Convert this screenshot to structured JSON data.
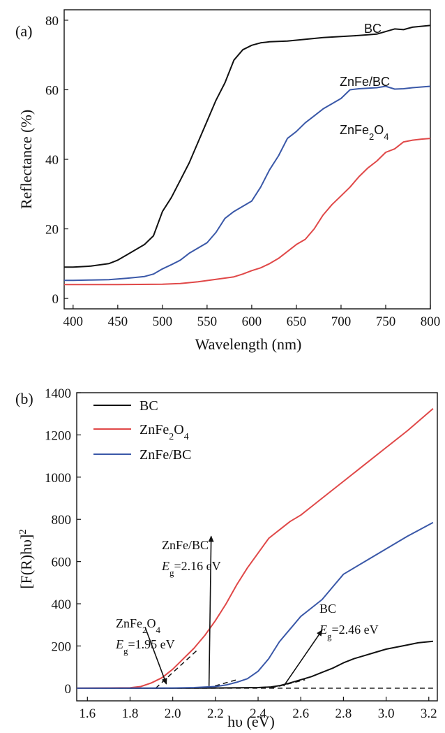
{
  "chart_data": [
    {
      "type": "line",
      "panel_label": "(a)",
      "xlabel": "Wavelength (nm)",
      "ylabel": "Reflectance (%)",
      "xlim": [
        390,
        800
      ],
      "ylim": [
        -3,
        83
      ],
      "xticks": [
        400,
        450,
        500,
        550,
        600,
        650,
        700,
        750,
        800
      ],
      "yticks": [
        0,
        20,
        40,
        60,
        80
      ],
      "grid": false,
      "series": [
        {
          "name": "BC",
          "color": "#111111",
          "x": [
            390,
            400,
            420,
            440,
            450,
            460,
            470,
            480,
            490,
            500,
            510,
            520,
            530,
            540,
            550,
            560,
            570,
            580,
            590,
            600,
            610,
            620,
            640,
            660,
            680,
            700,
            720,
            740,
            760,
            770,
            780,
            800
          ],
          "y": [
            9,
            9,
            9.3,
            10,
            11,
            12.5,
            14,
            15.5,
            18,
            25,
            29,
            34,
            39,
            45,
            51,
            57,
            62,
            68.5,
            71.5,
            72.8,
            73.5,
            73.8,
            74,
            74.5,
            75,
            75.3,
            75.6,
            76,
            77.5,
            77.3,
            78,
            78.5
          ]
        },
        {
          "name": "ZnFe/BC",
          "color": "#3a58a8",
          "x": [
            390,
            400,
            420,
            440,
            460,
            480,
            490,
            500,
            510,
            520,
            530,
            540,
            550,
            560,
            570,
            580,
            590,
            600,
            610,
            620,
            630,
            640,
            650,
            660,
            670,
            680,
            690,
            700,
            710,
            720,
            740,
            750,
            760,
            770,
            780,
            800
          ],
          "y": [
            5.2,
            5.2,
            5.3,
            5.4,
            5.8,
            6.3,
            7,
            8.5,
            9.7,
            11,
            13,
            14.5,
            16,
            19,
            23,
            25,
            26.5,
            28,
            32,
            37,
            41,
            46,
            48,
            50.5,
            52.5,
            54.5,
            56,
            57.5,
            60,
            60.3,
            60.6,
            61,
            60.2,
            60.3,
            60.6,
            61
          ]
        },
        {
          "name": "ZnFe2O4",
          "color": "#e04848",
          "x": [
            390,
            400,
            450,
            500,
            520,
            540,
            560,
            580,
            590,
            600,
            610,
            620,
            630,
            640,
            650,
            660,
            670,
            680,
            690,
            700,
            710,
            720,
            730,
            740,
            750,
            760,
            770,
            780,
            790,
            800
          ],
          "y": [
            4,
            4,
            4,
            4.1,
            4.3,
            4.8,
            5.5,
            6.2,
            7,
            8,
            8.8,
            10,
            11.5,
            13.5,
            15.5,
            17,
            20,
            24,
            27,
            29.5,
            32,
            35,
            37.5,
            39.5,
            42,
            43,
            45,
            45.5,
            45.8,
            46
          ]
        }
      ],
      "labels": {
        "bc": "BC",
        "znfe_bc": "ZnFe/BC",
        "znfe2o4_main": "ZnFe",
        "znfe2o4_sub1": "2",
        "znfe2o4_mid": "O",
        "znfe2o4_sub2": "4"
      }
    },
    {
      "type": "line",
      "panel_label": "(b)",
      "xlabel": "hυ (eV)",
      "ylabel_main": "[F(R)hυ]",
      "ylabel_sup": "2",
      "xlim": [
        1.55,
        3.24
      ],
      "ylim": [
        -60,
        1400
      ],
      "xticks": [
        1.6,
        1.8,
        2.0,
        2.2,
        2.4,
        2.6,
        2.8,
        3.0,
        3.2
      ],
      "yticks": [
        0,
        200,
        400,
        600,
        800,
        1000,
        1200,
        1400
      ],
      "grid": false,
      "legend_position": "top-left",
      "legend": [
        {
          "label": "BC",
          "color": "#111111"
        },
        {
          "label_main": "ZnFe",
          "label_sub1": "2",
          "label_mid": "O",
          "label_sub2": "4",
          "color": "#e04848"
        },
        {
          "label": "ZnFe/BC",
          "color": "#3a58a8"
        }
      ],
      "series": [
        {
          "name": "BC",
          "color": "#111111",
          "x": [
            1.55,
            2.0,
            2.2,
            2.4,
            2.46,
            2.5,
            2.55,
            2.6,
            2.65,
            2.7,
            2.75,
            2.8,
            2.85,
            2.9,
            2.95,
            3.0,
            3.05,
            3.1,
            3.15,
            3.22
          ],
          "y": [
            0,
            0,
            1,
            3,
            6,
            12,
            25,
            40,
            55,
            75,
            95,
            120,
            140,
            155,
            170,
            185,
            195,
            205,
            215,
            222
          ]
        },
        {
          "name": "ZnFe2O4",
          "color": "#e04848",
          "x": [
            1.55,
            1.8,
            1.85,
            1.9,
            1.95,
            2.0,
            2.05,
            2.1,
            2.15,
            2.2,
            2.25,
            2.3,
            2.35,
            2.4,
            2.45,
            2.5,
            2.55,
            2.6,
            2.65,
            2.7,
            2.8,
            2.9,
            3.0,
            3.1,
            3.22
          ],
          "y": [
            0,
            2,
            8,
            25,
            50,
            90,
            140,
            190,
            250,
            320,
            400,
            490,
            570,
            640,
            710,
            750,
            790,
            820,
            860,
            900,
            980,
            1060,
            1140,
            1220,
            1325
          ]
        },
        {
          "name": "ZnFe/BC",
          "color": "#3a58a8",
          "x": [
            1.55,
            2.0,
            2.1,
            2.2,
            2.25,
            2.3,
            2.35,
            2.4,
            2.45,
            2.5,
            2.55,
            2.6,
            2.65,
            2.7,
            2.75,
            2.8,
            2.9,
            3.0,
            3.1,
            3.22
          ],
          "y": [
            0,
            1,
            3,
            8,
            15,
            28,
            45,
            80,
            140,
            220,
            280,
            340,
            380,
            420,
            480,
            540,
            600,
            660,
            720,
            785
          ]
        }
      ],
      "tangents": [
        {
          "color": "#111111",
          "x": [
            1.92,
            2.12
          ],
          "y": [
            0,
            185
          ]
        },
        {
          "color": "#111111",
          "x": [
            2.16,
            2.3
          ],
          "y": [
            0,
            40
          ]
        },
        {
          "color": "#111111",
          "x": [
            2.46,
            2.62
          ],
          "y": [
            0,
            40
          ]
        },
        {
          "color": "#111111",
          "x": [
            1.55,
            3.22
          ],
          "y": [
            0,
            0
          ]
        }
      ],
      "arrows": [
        {
          "from": [
            1.87,
            290
          ],
          "to": [
            1.97,
            20
          ]
        },
        {
          "from": [
            2.17,
            10
          ],
          "to": [
            2.18,
            720
          ]
        },
        {
          "from": [
            2.52,
            10
          ],
          "to": [
            2.7,
            275
          ]
        }
      ],
      "annotations": {
        "znfe2o4_name_main": "ZnFe",
        "znfe2o4_name_sub1": "2",
        "znfe2o4_name_mid": "O",
        "znfe2o4_name_sub2": "4",
        "eg_symbol": "E",
        "eg_sub": "g",
        "znfe2o4_eg": "=1.95 eV",
        "znfe_bc_name": "ZnFe/BC",
        "znfe_bc_eg": "=2.16 eV",
        "bc_name": "BC",
        "bc_eg": "=2.46 eV"
      }
    }
  ]
}
